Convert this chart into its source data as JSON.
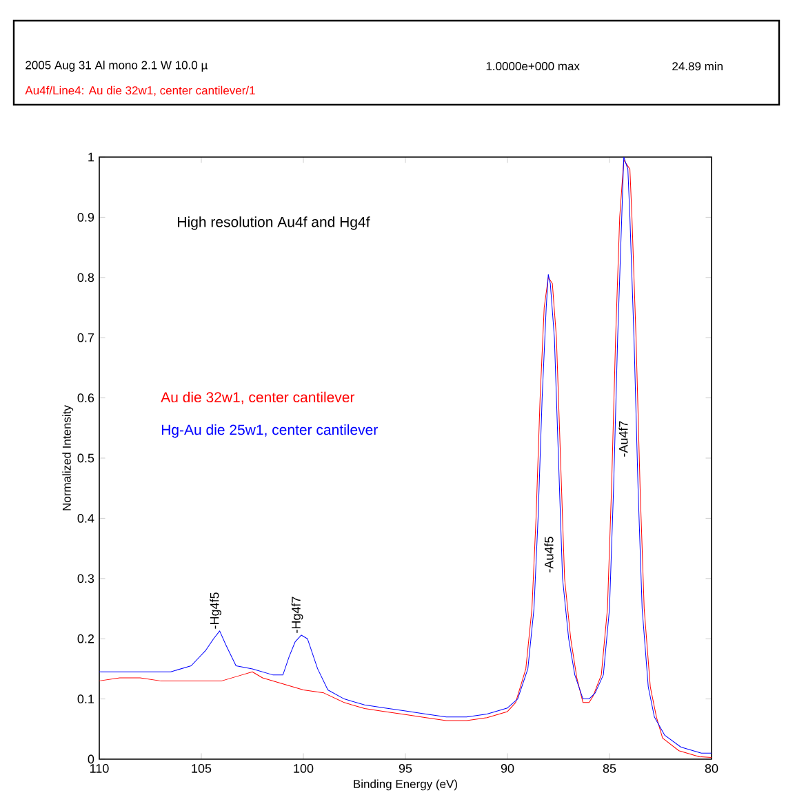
{
  "chart_data": {
    "type": "line",
    "xlabel": "Binding Energy (eV)",
    "ylabel": "Normalized Intensity",
    "xlim": [
      110,
      80
    ],
    "ylim": [
      0,
      1
    ],
    "xticks": [
      110,
      105,
      100,
      95,
      90,
      85,
      80
    ],
    "yticks": [
      0,
      0.1,
      0.2,
      0.3,
      0.4,
      0.5,
      0.6,
      0.7,
      0.8,
      0.9,
      1
    ],
    "grid": false,
    "legend": "left",
    "marker": "none",
    "line_style": "solid",
    "series": [
      {
        "name": "Au die 32w1, center cantilever",
        "color": "#ff0000",
        "x": [
          110,
          109,
          108,
          107,
          106,
          105,
          104,
          103,
          102.5,
          102,
          101,
          100,
          99,
          98,
          97,
          96,
          95,
          94,
          93,
          92,
          91,
          90,
          89.6,
          89.1,
          88.8,
          88.6,
          88.4,
          88.2,
          88,
          87.8,
          87.6,
          87.4,
          87.2,
          86.9,
          86.6,
          86.3,
          86,
          85.8,
          85.4,
          85.1,
          84.9,
          84.7,
          84.5,
          84.3,
          84,
          83.9,
          83.7,
          83.5,
          83.3,
          83,
          82.7,
          82.4,
          81.6,
          80.6,
          80
        ],
        "values": [
          0.13,
          0.135,
          0.135,
          0.13,
          0.13,
          0.13,
          0.13,
          0.14,
          0.145,
          0.135,
          0.125,
          0.115,
          0.11,
          0.094,
          0.084,
          0.079,
          0.074,
          0.069,
          0.064,
          0.064,
          0.069,
          0.079,
          0.094,
          0.15,
          0.25,
          0.4,
          0.6,
          0.75,
          0.8,
          0.79,
          0.7,
          0.5,
          0.3,
          0.2,
          0.135,
          0.094,
          0.094,
          0.105,
          0.14,
          0.25,
          0.45,
          0.7,
          0.9,
          0.995,
          0.98,
          0.9,
          0.7,
          0.45,
          0.25,
          0.12,
          0.07,
          0.035,
          0.014,
          0.004,
          0.003
        ]
      },
      {
        "name": "Hg-Au die 25w1, center cantilever",
        "color": "#0000ff",
        "x": [
          110,
          109,
          108,
          107,
          106.5,
          105.5,
          104.8,
          104.4,
          104.1,
          103.8,
          103.3,
          102.5,
          101.5,
          101,
          100.7,
          100.4,
          100.1,
          99.8,
          99.3,
          98.8,
          98,
          97,
          96,
          95,
          94,
          93,
          92,
          91,
          90,
          89.5,
          89,
          88.7,
          88.5,
          88.3,
          88.1,
          88,
          87.9,
          87.7,
          87.5,
          87.3,
          87,
          86.7,
          86.3,
          86,
          85.7,
          85.3,
          85,
          84.8,
          84.6,
          84.4,
          84.3,
          84.1,
          84,
          83.8,
          83.6,
          83.4,
          83.1,
          82.8,
          82.3,
          81.5,
          80.5,
          80
        ],
        "values": [
          0.145,
          0.145,
          0.145,
          0.145,
          0.145,
          0.155,
          0.18,
          0.2,
          0.213,
          0.19,
          0.155,
          0.15,
          0.14,
          0.14,
          0.17,
          0.195,
          0.206,
          0.2,
          0.15,
          0.115,
          0.1,
          0.09,
          0.085,
          0.08,
          0.075,
          0.07,
          0.07,
          0.075,
          0.085,
          0.1,
          0.15,
          0.25,
          0.4,
          0.6,
          0.75,
          0.805,
          0.79,
          0.7,
          0.5,
          0.3,
          0.2,
          0.14,
          0.1,
          0.1,
          0.11,
          0.14,
          0.25,
          0.45,
          0.7,
          0.9,
          1,
          0.98,
          0.9,
          0.7,
          0.45,
          0.25,
          0.12,
          0.07,
          0.04,
          0.02,
          0.01,
          0.01
        ]
      }
    ],
    "annotations": [
      "High resolution Au4f and Hg4f",
      "2005 Aug 31 Al mono 2.1 W 10.0 µ",
      "1.0000e+000 max",
      "24.89 min",
      "Au4f/Line4: Au die 32w1, center cantilever/1",
      {
        "text": "-Hg4f5",
        "x": 104.1,
        "y": 0.213
      },
      {
        "text": "-Hg4f7",
        "x": 100.1,
        "y": 0.206
      },
      "-Au4f5",
      "-Au4f7"
    ]
  }
}
